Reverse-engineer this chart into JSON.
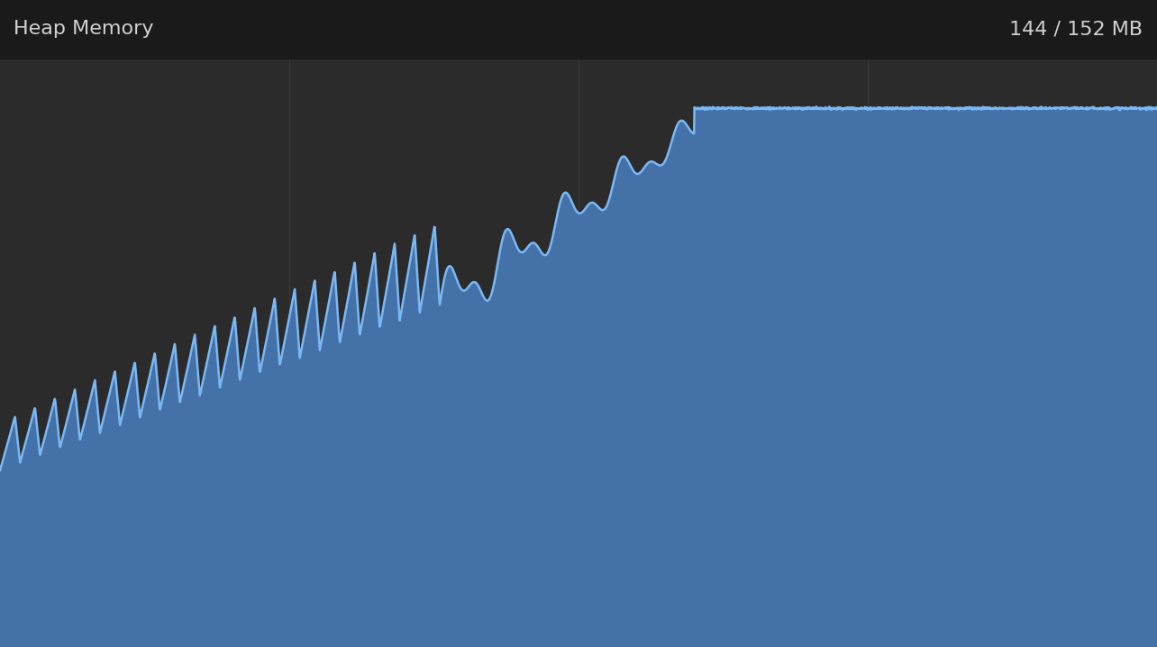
{
  "title_left": "Heap Memory",
  "title_right": "144 / 152 MB",
  "bg_color": "#2b2b2b",
  "header_bg_color": "#1a1a1a",
  "fill_color": "#4472a8",
  "line_color": "#7ab8f5",
  "line_width": 1.8,
  "ylim": [
    0,
    1.0
  ],
  "xlim": [
    0,
    1.0
  ],
  "title_fontsize": 16,
  "title_color": "#d0d0d0"
}
